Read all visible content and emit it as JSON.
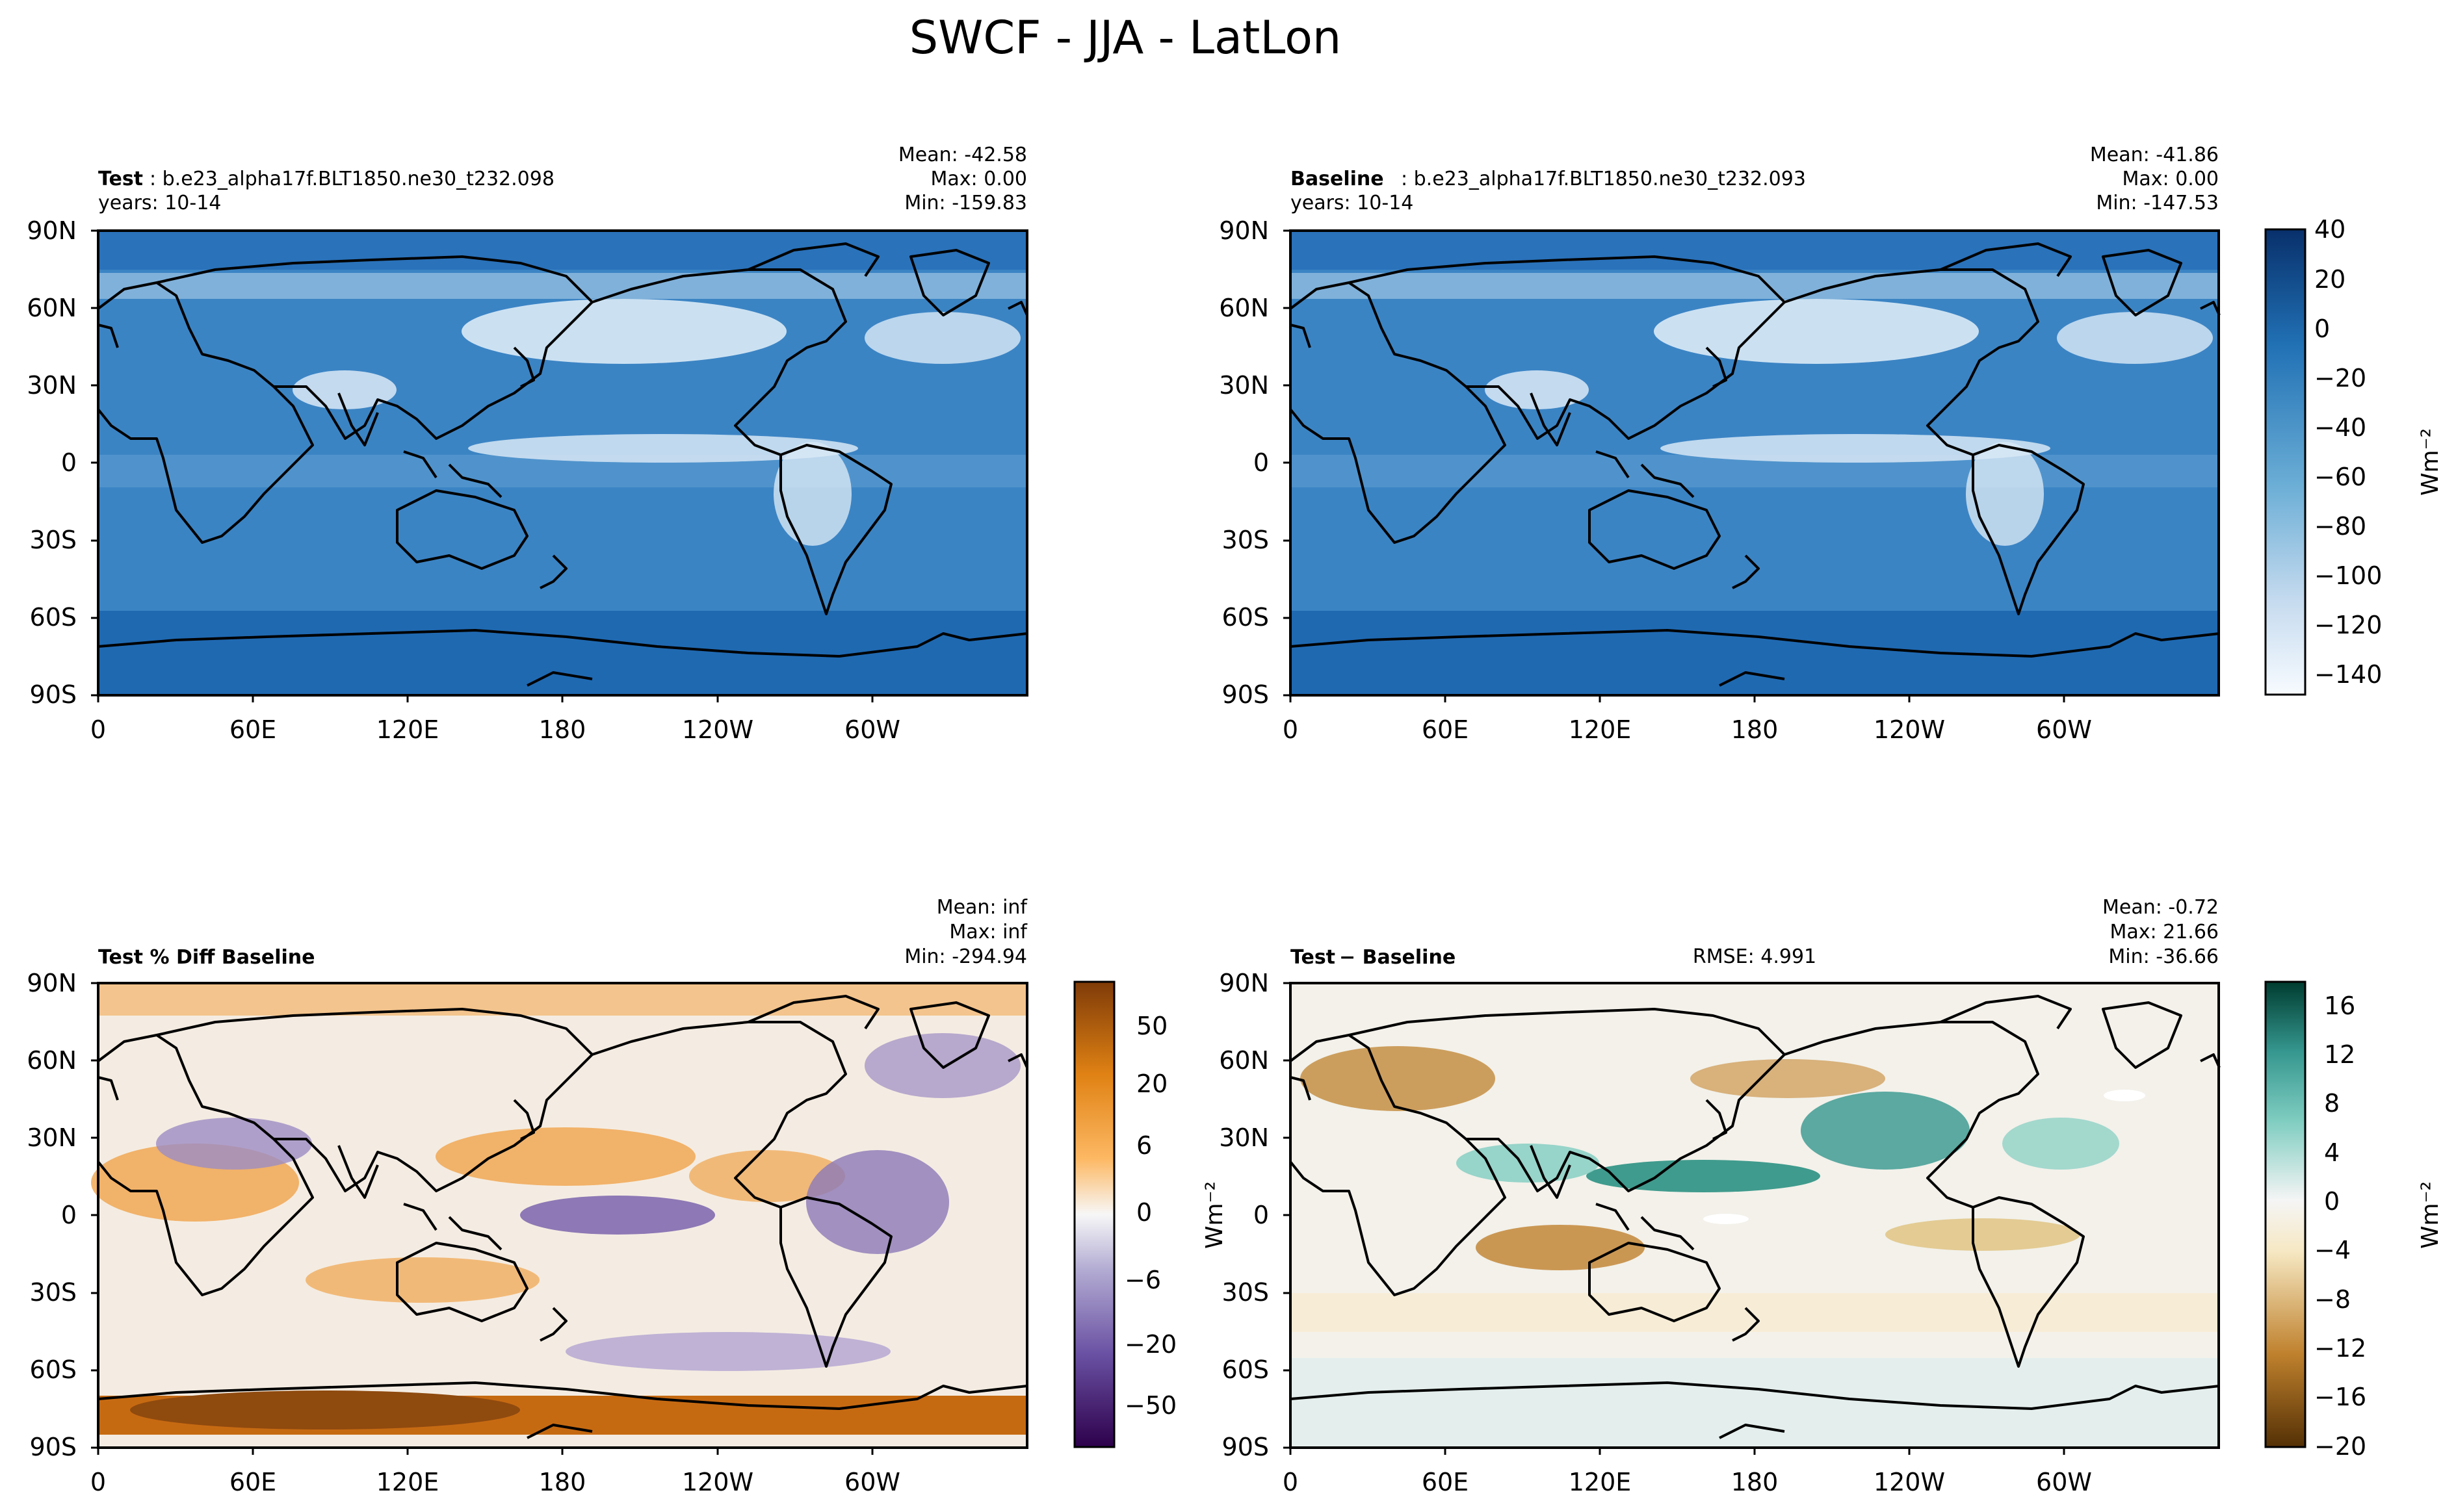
{
  "figure_title": "SWCF - JJA - LatLon",
  "chart_data": [
    {
      "type": "heatmap",
      "panel": "test",
      "title_bold": "Test",
      "title_rest": ": b.e23_alpha17f.BLT1850.ne30_t232.098",
      "subtitle": "years: 10-14",
      "stats": [
        "Mean: -42.58",
        "Max:  0.00",
        "Min: -159.83"
      ],
      "x_ticks": [
        "0",
        "60E",
        "120E",
        "180",
        "120W",
        "60W"
      ],
      "y_ticks": [
        "90N",
        "60N",
        "30N",
        "0",
        "30S",
        "60S",
        "90S"
      ],
      "colormap": "Blues",
      "clim": [
        -150,
        40
      ]
    },
    {
      "type": "heatmap",
      "panel": "baseline",
      "title_bold": "Baseline",
      "title_rest": ": b.e23_alpha17f.BLT1850.ne30_t232.093",
      "subtitle": "years: 10-14",
      "stats": [
        "Mean: -41.86",
        "Max:  0.00",
        "Min: -147.53"
      ],
      "x_ticks": [
        "0",
        "60E",
        "120E",
        "180",
        "120W",
        "60W"
      ],
      "y_ticks": [
        "90N",
        "60N",
        "30N",
        "0",
        "30S",
        "60S",
        "90S"
      ],
      "colormap": "Blues",
      "clim": [
        -150,
        40
      ],
      "colorbar": {
        "ticks": [
          40,
          20,
          0,
          -20,
          -40,
          -60,
          -80,
          -100,
          -120,
          -140
        ],
        "tick_labels": [
          "40",
          "20",
          "0",
          "−20",
          "−40",
          "−60",
          "−80",
          "−100",
          "−120",
          "−140"
        ],
        "label": "Wm⁻²"
      }
    },
    {
      "type": "heatmap",
      "panel": "pct_diff",
      "title_bold": "Test % Diff Baseline",
      "title_rest": "",
      "stats": [
        "Mean:   inf",
        "Max:   inf",
        "Min: -294.94"
      ],
      "x_ticks": [
        "0",
        "60E",
        "120E",
        "180",
        "120W",
        "60W"
      ],
      "y_ticks": [
        "90N",
        "60N",
        "30N",
        "0",
        "30S",
        "60S",
        "90S"
      ],
      "colormap": "PuOr",
      "levels": [
        -100,
        -75,
        -50,
        -40,
        -30,
        -20,
        -15,
        -10,
        -8,
        -6,
        -4,
        -2,
        0,
        2,
        4,
        6,
        8,
        10,
        15,
        20,
        30,
        40,
        50,
        75,
        100
      ],
      "colorbar": {
        "ticks": [
          50,
          20,
          6,
          0,
          -6,
          -20,
          -50
        ],
        "tick_labels": [
          "50",
          "20",
          "6",
          "0",
          "−6",
          "−20",
          "−50"
        ],
        "label": ""
      }
    },
    {
      "type": "heatmap",
      "panel": "diff",
      "title_bold": "Test",
      "title_rest": " − Baseline",
      "rmse": "RMSE: 4.991",
      "stats": [
        "Mean: -0.72",
        "Max: 21.66",
        "Min: -36.66"
      ],
      "x_ticks": [
        "0",
        "60E",
        "120E",
        "180",
        "120W",
        "60W"
      ],
      "y_ticks": [
        "90N",
        "60N",
        "30N",
        "0",
        "30S",
        "60S",
        "90S"
      ],
      "colormap": "BrBG",
      "clim": [
        -20,
        18
      ],
      "left_label": "Wm⁻²",
      "colorbar": {
        "ticks": [
          16,
          12,
          8,
          4,
          0,
          -4,
          -8,
          -12,
          -16,
          -20
        ],
        "tick_labels": [
          "16",
          "12",
          "8",
          "4",
          "0",
          "−4",
          "−8",
          "−12",
          "−16",
          "−20"
        ],
        "label": "Wm⁻²"
      }
    }
  ]
}
